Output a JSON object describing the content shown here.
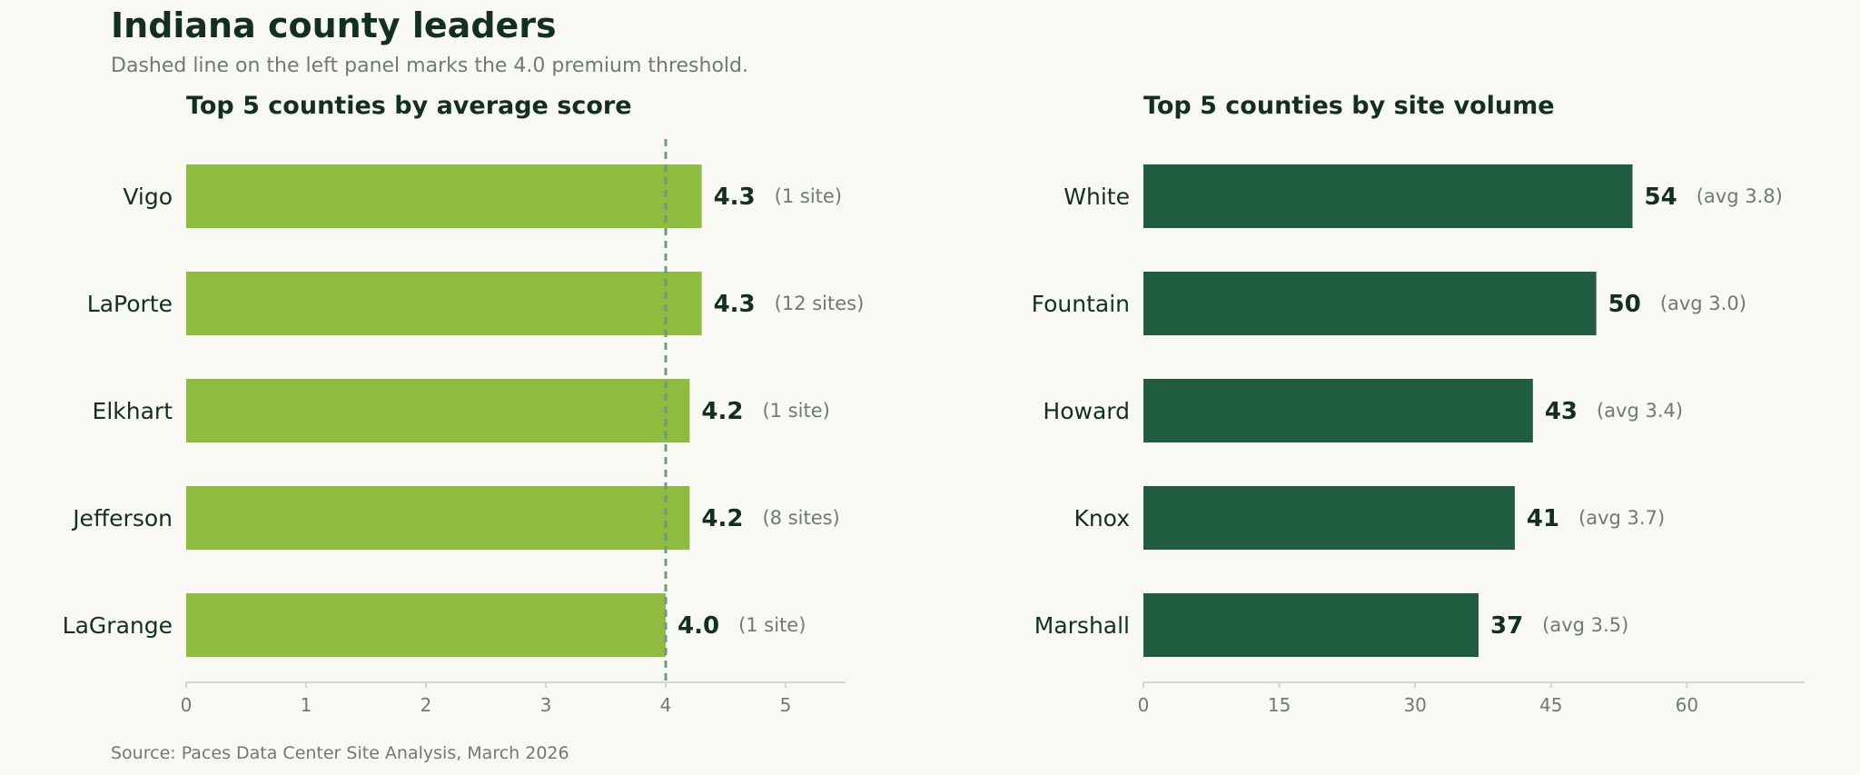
{
  "title": "Indiana county leaders",
  "subtitle": "Dashed line on the left panel marks the 4.0 premium threshold.",
  "source": "Source: Paces Data Center Site Analysis, March 2026",
  "colors": {
    "background": "#f8f9f4",
    "left_bar": "#8fbc3f",
    "right_bar": "#1f5c40",
    "text_dark": "#13301f",
    "text_muted": "#6f7a72",
    "threshold_line": "#6e9a8a",
    "axis_line": "#d4d6d0"
  },
  "chart_data": [
    {
      "type": "bar",
      "orientation": "horizontal",
      "title": "Top 5 counties by average score",
      "categories": [
        "Vigo",
        "LaPorte",
        "Elkhart",
        "Jefferson",
        "LaGrange"
      ],
      "values": [
        4.3,
        4.3,
        4.2,
        4.2,
        4.0
      ],
      "value_labels": [
        "4.3",
        "4.3",
        "4.2",
        "4.2",
        "4.0"
      ],
      "annotations": [
        "(1 site)",
        "(12 sites)",
        "(1 site)",
        "(8 sites)",
        "(1 site)"
      ],
      "xlim": [
        0,
        5.5
      ],
      "xticks": [
        0,
        1,
        2,
        3,
        4,
        5
      ],
      "xtick_labels": [
        "0",
        "1",
        "2",
        "3",
        "4",
        "5"
      ],
      "threshold": 4.0,
      "threshold_style": "dashed",
      "xlabel": "",
      "ylabel": "",
      "grid": false
    },
    {
      "type": "bar",
      "orientation": "horizontal",
      "title": "Top 5 counties by site volume",
      "categories": [
        "White",
        "Fountain",
        "Howard",
        "Knox",
        "Marshall"
      ],
      "values": [
        54,
        50,
        43,
        41,
        37
      ],
      "value_labels": [
        "54",
        "50",
        "43",
        "41",
        "37"
      ],
      "annotations": [
        "(avg 3.8)",
        "(avg 3.0)",
        "(avg 3.4)",
        "(avg 3.7)",
        "(avg 3.5)"
      ],
      "xlim": [
        0,
        73
      ],
      "xticks": [
        0,
        15,
        30,
        45,
        60
      ],
      "xtick_labels": [
        "0",
        "15",
        "30",
        "45",
        "60"
      ],
      "xlabel": "",
      "ylabel": "",
      "grid": false
    }
  ]
}
